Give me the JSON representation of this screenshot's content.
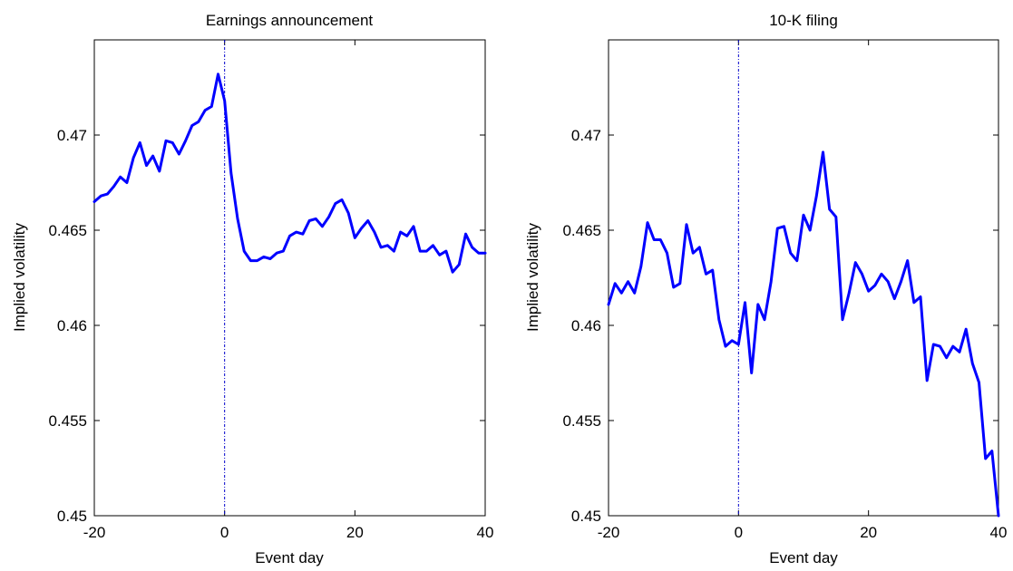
{
  "chart_data": [
    {
      "type": "line",
      "title": "Earnings announcement",
      "xlabel": "Event day",
      "ylabel": "Implied volatility",
      "xlim": [
        -20,
        40
      ],
      "ylim": [
        0.45,
        0.475
      ],
      "x_ticks": [
        -20,
        0,
        20,
        40
      ],
      "y_ticks": [
        0.45,
        0.455,
        0.46,
        0.465,
        0.47
      ],
      "x_tick_labels": [
        "-20",
        "0",
        "20",
        "40"
      ],
      "y_tick_labels": [
        "0.45",
        "0.455",
        "0.46",
        "0.465",
        "0.47"
      ],
      "grid": false,
      "event_line_x": 0,
      "line_color": "#0000ff",
      "series": [
        {
          "x": [
            -20,
            -19,
            -18,
            -17,
            -16,
            -15,
            -14,
            -13,
            -12,
            -11,
            -10,
            -9,
            -8,
            -7,
            -6,
            -5,
            -4,
            -3,
            -2,
            -1,
            0,
            1,
            2,
            3,
            4,
            5,
            6,
            7,
            8,
            9,
            10,
            11,
            12,
            13,
            14,
            15,
            16,
            17,
            18,
            19,
            20,
            21,
            22,
            23,
            24,
            25,
            26,
            27,
            28,
            29,
            30,
            31,
            32,
            33,
            34,
            35,
            36,
            37,
            38,
            39,
            40
          ],
          "values": [
            0.4665,
            0.4668,
            0.4669,
            0.4673,
            0.4678,
            0.4675,
            0.4688,
            0.4696,
            0.4684,
            0.4689,
            0.4681,
            0.4697,
            0.4696,
            0.469,
            0.4697,
            0.4705,
            0.4707,
            0.4713,
            0.4715,
            0.4732,
            0.4718,
            0.468,
            0.4656,
            0.4639,
            0.4634,
            0.4634,
            0.4636,
            0.4635,
            0.4638,
            0.4639,
            0.4647,
            0.4649,
            0.4648,
            0.4655,
            0.4656,
            0.4652,
            0.4657,
            0.4664,
            0.4666,
            0.4659,
            0.4646,
            0.4651,
            0.4655,
            0.4649,
            0.4641,
            0.4642,
            0.4639,
            0.4649,
            0.4647,
            0.4652,
            0.4639,
            0.4639,
            0.4642,
            0.4637,
            0.4639,
            0.4628,
            0.4632,
            0.4648,
            0.4641,
            0.4638,
            0.4638
          ]
        }
      ]
    },
    {
      "type": "line",
      "title": "10-K filing",
      "xlabel": "Event day",
      "ylabel": "Implied volatility",
      "xlim": [
        -20,
        40
      ],
      "ylim": [
        0.45,
        0.475
      ],
      "x_ticks": [
        -20,
        0,
        20,
        40
      ],
      "y_ticks": [
        0.45,
        0.455,
        0.46,
        0.465,
        0.47
      ],
      "x_tick_labels": [
        "-20",
        "0",
        "20",
        "40"
      ],
      "y_tick_labels": [
        "0.45",
        "0.455",
        "0.46",
        "0.465",
        "0.47"
      ],
      "grid": false,
      "event_line_x": 0,
      "line_color": "#0000ff",
      "series": [
        {
          "x": [
            -20,
            -19,
            -18,
            -17,
            -16,
            -15,
            -14,
            -13,
            -12,
            -11,
            -10,
            -9,
            -8,
            -7,
            -6,
            -5,
            -4,
            -3,
            -2,
            -1,
            0,
            1,
            2,
            3,
            4,
            5,
            6,
            7,
            8,
            9,
            10,
            11,
            12,
            13,
            14,
            15,
            16,
            17,
            18,
            19,
            20,
            21,
            22,
            23,
            24,
            25,
            26,
            27,
            28,
            29,
            30,
            31,
            32,
            33,
            34,
            35,
            36,
            37,
            38,
            39,
            40
          ],
          "values": [
            0.4611,
            0.4622,
            0.4617,
            0.4623,
            0.4617,
            0.4631,
            0.4654,
            0.4645,
            0.4645,
            0.4638,
            0.462,
            0.4622,
            0.4653,
            0.4638,
            0.4641,
            0.4627,
            0.4629,
            0.4603,
            0.4589,
            0.4592,
            0.459,
            0.4612,
            0.4575,
            0.4611,
            0.4603,
            0.4623,
            0.4651,
            0.4652,
            0.4638,
            0.4634,
            0.4658,
            0.465,
            0.4668,
            0.4691,
            0.4661,
            0.4657,
            0.4603,
            0.4617,
            0.4633,
            0.4627,
            0.4618,
            0.4621,
            0.4627,
            0.4623,
            0.4614,
            0.4623,
            0.4634,
            0.4612,
            0.4615,
            0.4571,
            0.459,
            0.4589,
            0.4583,
            0.4589,
            0.4586,
            0.4598,
            0.458,
            0.457,
            0.453,
            0.4534,
            0.45
          ]
        }
      ]
    }
  ]
}
